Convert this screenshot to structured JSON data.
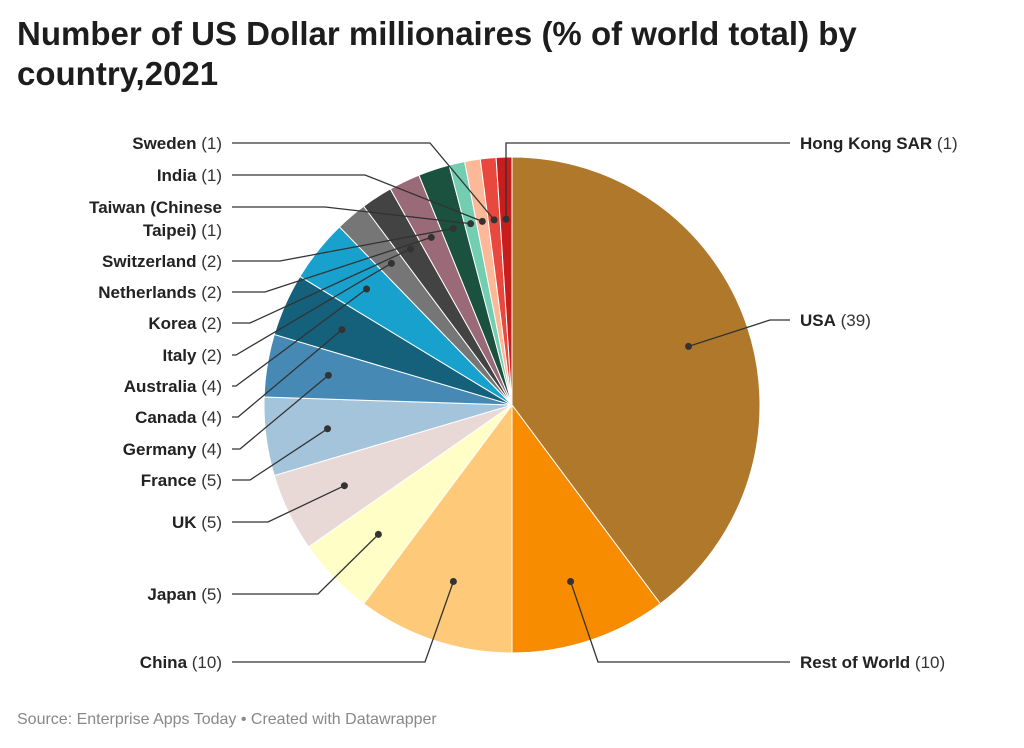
{
  "title": "Number of US Dollar millionaires (% of world total) by country,2021",
  "footer": "Source: Enterprise Apps Today • Created with Datawrapper",
  "chart_data": {
    "type": "pie",
    "title": "Number of US Dollar millionaires (% of world total) by country,2021",
    "slices": [
      {
        "label": "USA",
        "value": 39,
        "color": "#b0782a"
      },
      {
        "label": "Rest of World",
        "value": 10,
        "color": "#f78c00"
      },
      {
        "label": "China",
        "value": 10,
        "color": "#fec978"
      },
      {
        "label": "Japan",
        "value": 5,
        "color": "#fefec6"
      },
      {
        "label": "UK",
        "value": 5,
        "color": "#e8d9d6"
      },
      {
        "label": "France",
        "value": 5,
        "color": "#a4c4dc"
      },
      {
        "label": "Germany",
        "value": 4,
        "color": "#4689b5"
      },
      {
        "label": "Canada",
        "value": 4,
        "color": "#15607a"
      },
      {
        "label": "Australia",
        "value": 4,
        "color": "#18a1cd"
      },
      {
        "label": "Italy",
        "value": 2,
        "color": "#767676"
      },
      {
        "label": "Korea",
        "value": 2,
        "color": "#434343"
      },
      {
        "label": "Netherlands",
        "value": 2,
        "color": "#9a6a78"
      },
      {
        "label": "Switzerland",
        "value": 2,
        "color": "#1b513f"
      },
      {
        "label": "Taiwan (Chinese Taipei)",
        "value": 1,
        "color": "#73cdb0"
      },
      {
        "label": "India",
        "value": 1,
        "color": "#fdb898"
      },
      {
        "label": "Sweden",
        "value": 1,
        "color": "#e8483d"
      },
      {
        "label": "Hong Kong SAR",
        "value": 1,
        "color": "#c71e1d"
      }
    ]
  }
}
